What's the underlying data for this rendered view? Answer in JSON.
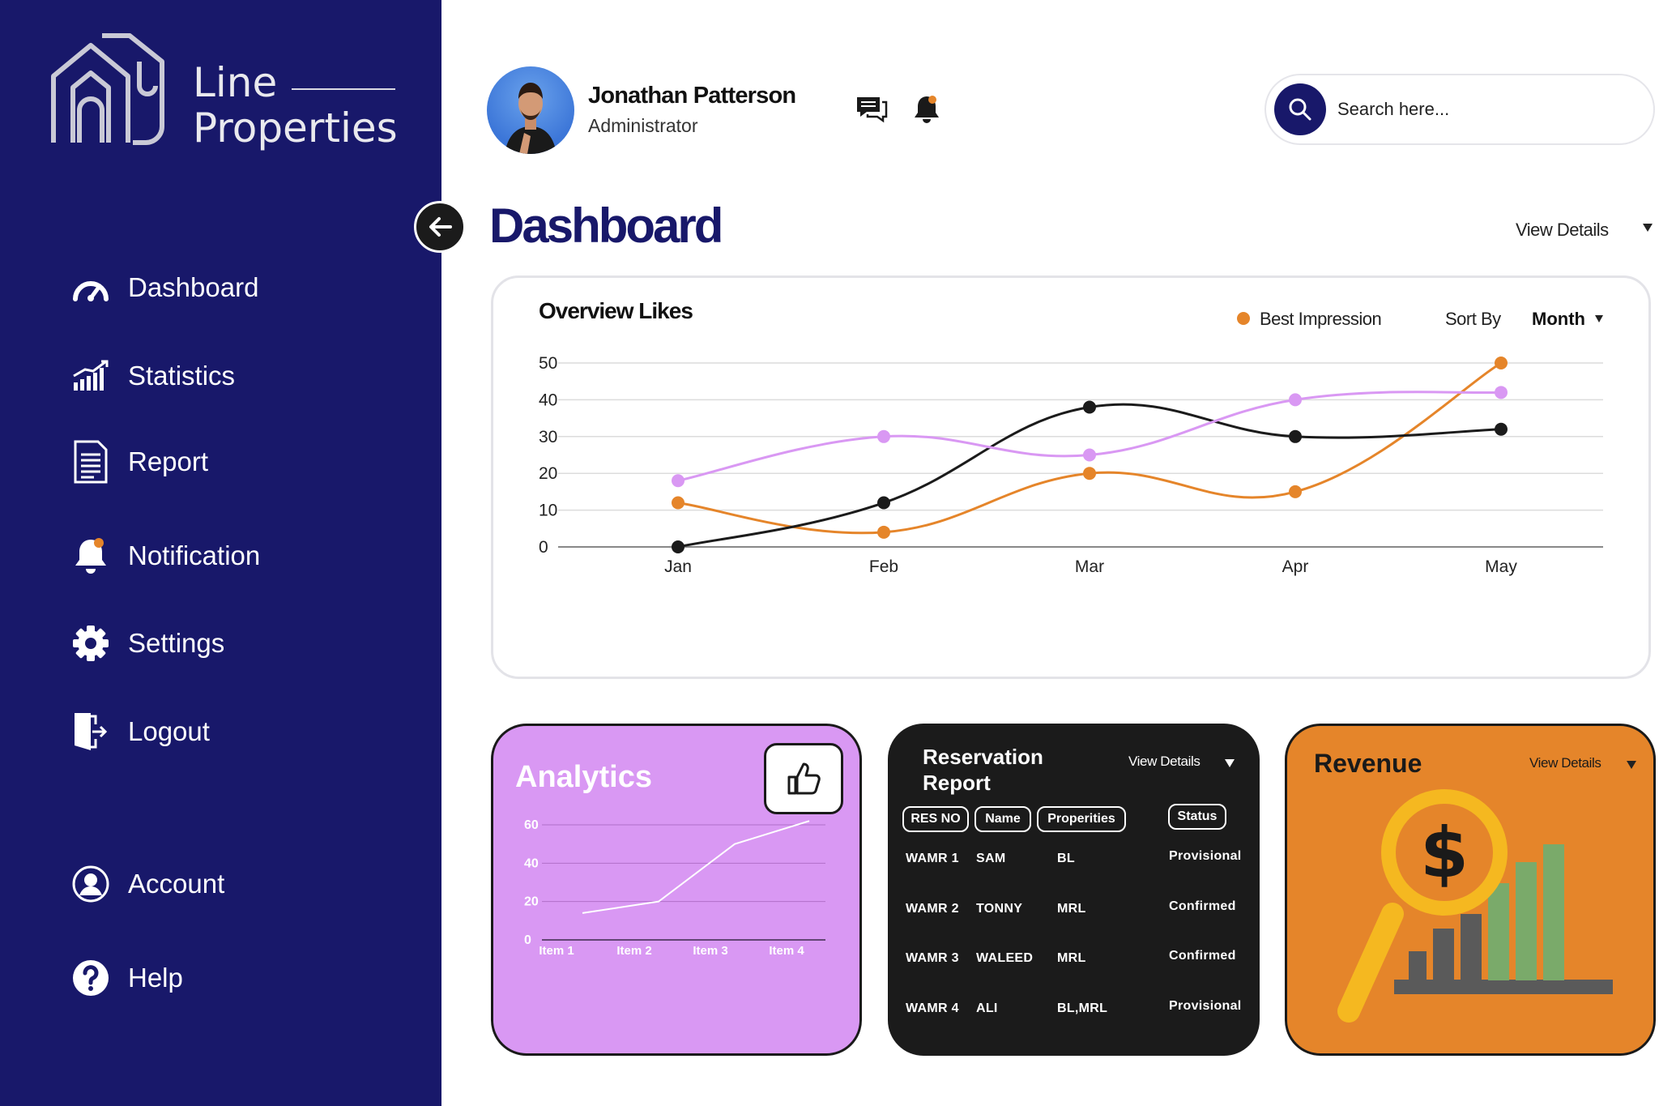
{
  "brand": {
    "line1": "Line",
    "line2": "Properties"
  },
  "sidebar": {
    "items": [
      {
        "label": "Dashboard",
        "icon": "speedometer-icon"
      },
      {
        "label": "Statistics",
        "icon": "bar-chart-icon"
      },
      {
        "label": "Report",
        "icon": "document-icon"
      },
      {
        "label": "Notification",
        "icon": "bell-icon"
      },
      {
        "label": "Settings",
        "icon": "gear-icon"
      },
      {
        "label": "Logout",
        "icon": "logout-door-icon"
      },
      {
        "label": "Account",
        "icon": "user-circle-icon"
      },
      {
        "label": "Help",
        "icon": "question-circle-icon"
      }
    ]
  },
  "header": {
    "user_name": "Jonathan Patterson",
    "user_role": "Administrator",
    "search_placeholder": "Search here..."
  },
  "page": {
    "title": "Dashboard",
    "view_details": "View Details"
  },
  "overview": {
    "title": "Overview Likes",
    "legend_label": "Best Impression",
    "sort_label": "Sort By",
    "sort_value": "Month"
  },
  "analytics": {
    "title": "Analytics"
  },
  "reservation": {
    "title_line1": "Reservation",
    "title_line2": "Report",
    "view_details": "View Details",
    "columns": [
      "RES NO",
      "Name",
      "Properities",
      "Status"
    ],
    "rows": [
      [
        "WAMR 1",
        "SAM",
        "BL",
        "Provisional"
      ],
      [
        "WAMR 2",
        "TONNY",
        "MRL",
        "Confirmed"
      ],
      [
        "WAMR 3",
        "WALEED",
        "MRL",
        "Confirmed"
      ],
      [
        "WAMR 4",
        "ALI",
        "BL,MRL",
        "Provisional"
      ]
    ]
  },
  "revenue": {
    "title": "Revenue",
    "view_details": "View Details"
  },
  "colors": {
    "sidebar": "#18186a",
    "orange": "#e5852a",
    "purple": "#d998f3",
    "dark": "#1b1b1b"
  },
  "chart_data": [
    {
      "type": "line",
      "title": "Overview Likes",
      "categories": [
        "Jan",
        "Feb",
        "Mar",
        "Apr",
        "May"
      ],
      "ylim": [
        0,
        50
      ],
      "yticks": [
        0,
        10,
        20,
        30,
        40,
        50
      ],
      "grid": true,
      "legend": "top-right",
      "series": [
        {
          "name": "Best Impression",
          "color": "#e5852a",
          "values": [
            12,
            4,
            20,
            15,
            50
          ]
        },
        {
          "color": "#1b1b1b",
          "values": [
            0,
            12,
            38,
            30,
            32
          ]
        },
        {
          "color": "#d998f3",
          "values": [
            18,
            30,
            25,
            40,
            42
          ]
        }
      ]
    },
    {
      "type": "line",
      "title": "Analytics",
      "categories": [
        "Item 1",
        "Item 2",
        "Item 3",
        "Item 4"
      ],
      "ylim": [
        0,
        60
      ],
      "yticks": [
        0,
        20,
        40,
        60
      ],
      "grid": true,
      "series": [
        {
          "color": "#ffffff",
          "values": [
            14,
            20,
            50,
            62
          ]
        }
      ]
    }
  ]
}
